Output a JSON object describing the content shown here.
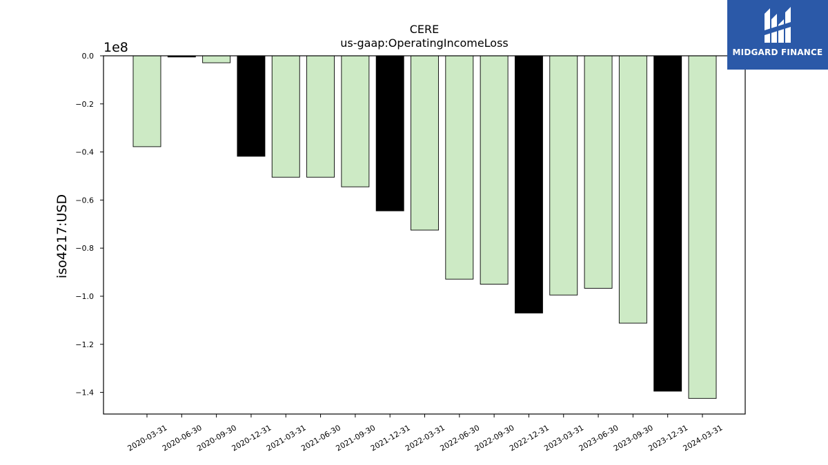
{
  "chart_data": {
    "type": "bar",
    "title": "CERE",
    "subtitle": "us-gaap:OperatingIncomeLoss",
    "ylabel": "iso4217:USD",
    "xlabel": "",
    "offset_label": "1e8",
    "y_scale": 100000000,
    "ylim": [
      -1.49,
      0.0
    ],
    "yticks": [
      0.0,
      -0.2,
      -0.4,
      -0.6,
      -0.8,
      -1.0,
      -1.2,
      -1.4
    ],
    "ytick_labels": [
      "0.0",
      "−0.2",
      "−0.4",
      "−0.6",
      "−0.8",
      "−1.0",
      "−1.2",
      "−1.4"
    ],
    "grid": false,
    "categories": [
      "2020-03-31",
      "2020-06-30",
      "2020-09-30",
      "2020-12-31",
      "2021-03-31",
      "2021-06-30",
      "2021-09-30",
      "2021-12-31",
      "2022-03-31",
      "2022-06-30",
      "2022-09-30",
      "2022-12-31",
      "2023-03-31",
      "2023-06-30",
      "2023-09-30",
      "2023-12-31",
      "2024-03-31"
    ],
    "values": [
      -37800000,
      -500000,
      -2900000,
      -41800000,
      -50500000,
      -50500000,
      -54500000,
      -64500000,
      -72500000,
      -92900000,
      -95000000,
      -107000000,
      -99500000,
      -96700000,
      -111200000,
      -139500000,
      -142500000
    ],
    "bar_colors": [
      "#cdeac5",
      "#000000",
      "#cdeac5",
      "#000000",
      "#cdeac5",
      "#cdeac5",
      "#cdeac5",
      "#000000",
      "#cdeac5",
      "#cdeac5",
      "#cdeac5",
      "#000000",
      "#cdeac5",
      "#cdeac5",
      "#cdeac5",
      "#000000",
      "#cdeac5"
    ]
  },
  "logo": {
    "text": "MIDGARD FINANCE",
    "background": "#2b59a8"
  }
}
